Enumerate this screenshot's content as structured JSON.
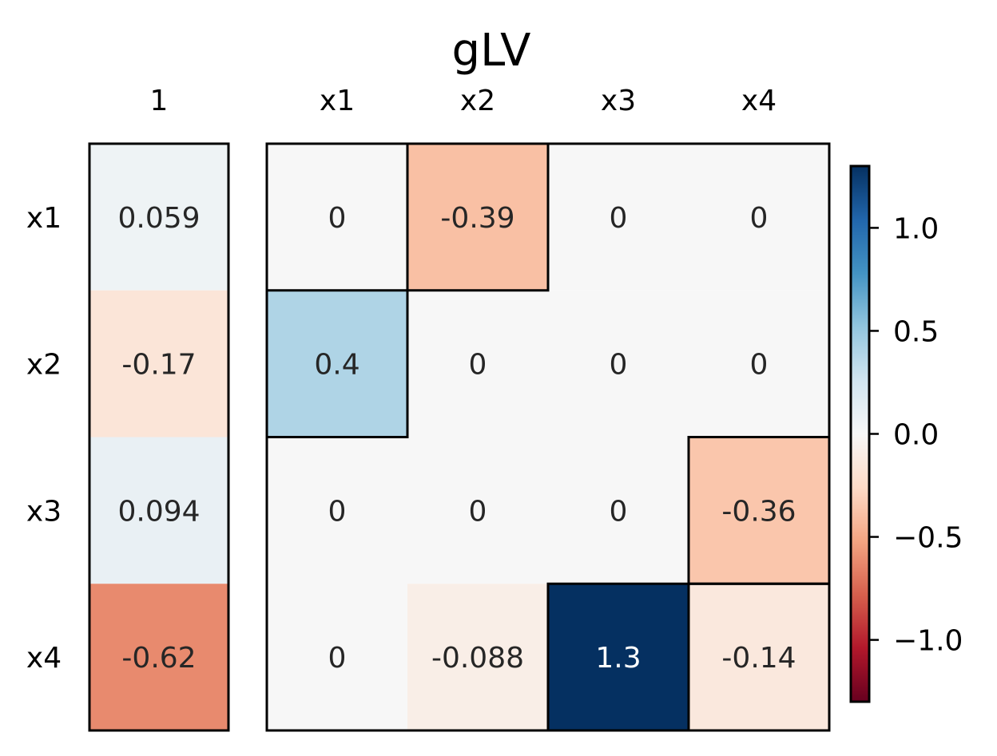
{
  "chart_data": {
    "type": "heatmap",
    "title": "gLV",
    "row_labels": [
      "x1",
      "x2",
      "x3",
      "x4"
    ],
    "growth_panel": {
      "column_label": "1",
      "values": [
        0.059,
        -0.17,
        0.094,
        -0.62
      ],
      "value_labels": [
        "0.059",
        "-0.17",
        "0.094",
        "-0.62"
      ]
    },
    "interaction_panel": {
      "column_labels": [
        "x1",
        "x2",
        "x3",
        "x4"
      ],
      "values": [
        [
          0,
          -0.39,
          0,
          0
        ],
        [
          0.4,
          0,
          0,
          0
        ],
        [
          0,
          0,
          0,
          -0.36
        ],
        [
          0,
          -0.088,
          1.3,
          -0.14
        ]
      ],
      "value_labels": [
        [
          "0",
          "-0.39",
          "0",
          "0"
        ],
        [
          "0.4",
          "0",
          "0",
          "0"
        ],
        [
          "0",
          "0",
          "0",
          "-0.36"
        ],
        [
          "0",
          "-0.088",
          "1.3",
          "-0.14"
        ]
      ],
      "highlighted_cells": [
        [
          0,
          1
        ],
        [
          1,
          0
        ],
        [
          2,
          3
        ],
        [
          3,
          2
        ],
        [
          3,
          3
        ]
      ]
    },
    "colorbar": {
      "colormap": "RdBu",
      "range": [
        -1.3,
        1.3
      ],
      "ticks": [
        1.0,
        0.5,
        0.0,
        -0.5,
        -1.0
      ],
      "tick_labels": [
        "1.0",
        "0.5",
        "0.0",
        "−0.5",
        "−1.0"
      ]
    }
  }
}
